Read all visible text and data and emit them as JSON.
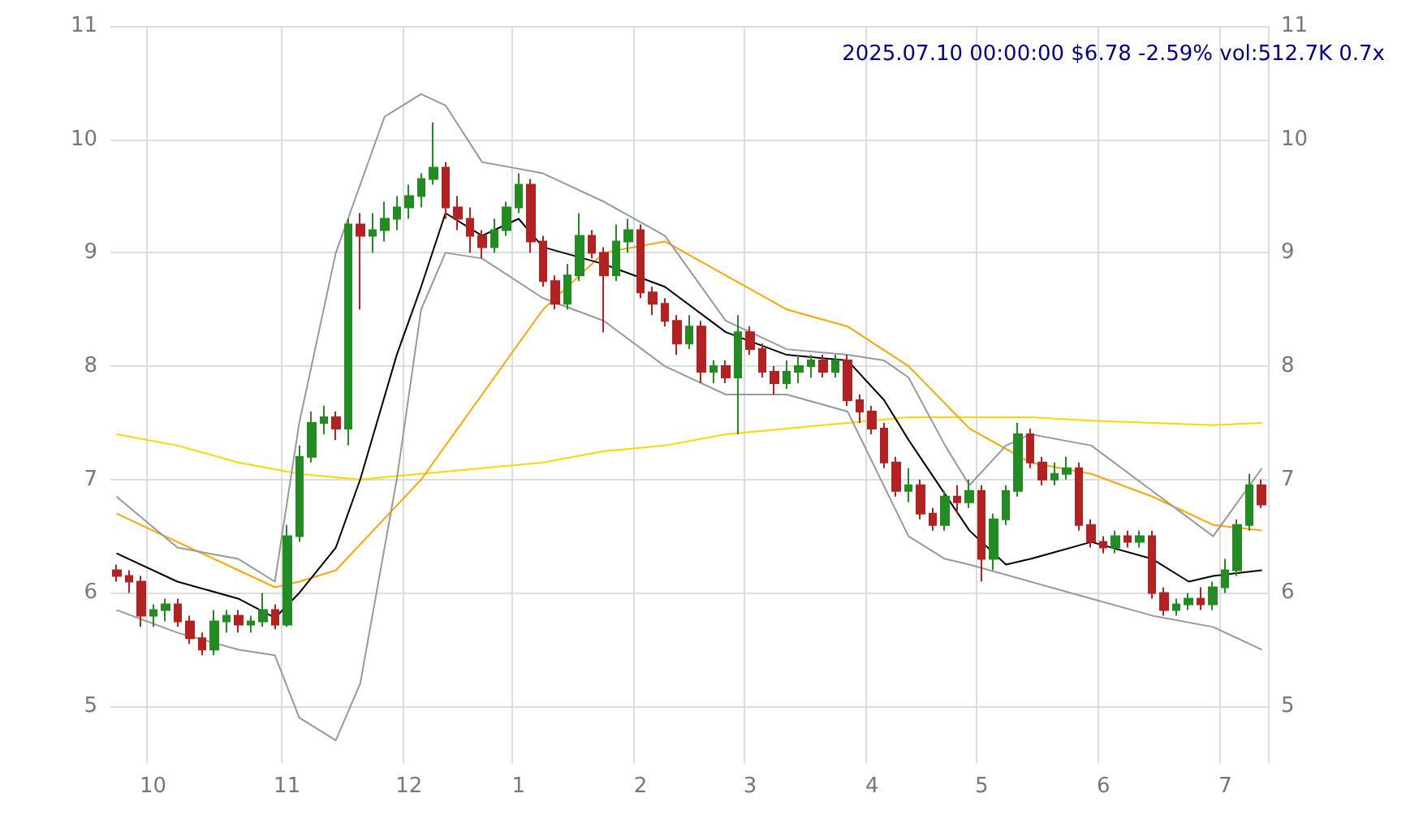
{
  "chart_data": {
    "type": "candlestick",
    "title": "2025.07.10 00:00:00 $6.78 -2.59% vol:512.7K 0.7x",
    "categories": [
      null,
      null,
      null,
      "10",
      null,
      null,
      null,
      null,
      null,
      null,
      null,
      null,
      null,
      null,
      "11",
      null,
      null,
      null,
      null,
      null,
      null,
      null,
      null,
      null,
      "12",
      null,
      null,
      null,
      null,
      null,
      null,
      null,
      null,
      "1",
      null,
      null,
      null,
      null,
      null,
      null,
      null,
      null,
      null,
      "2",
      null,
      null,
      null,
      null,
      null,
      null,
      null,
      null,
      "3",
      null,
      null,
      null,
      null,
      null,
      null,
      null,
      null,
      null,
      "4",
      null,
      null,
      null,
      null,
      null,
      null,
      null,
      null,
      "5",
      null,
      null,
      null,
      null,
      null,
      null,
      null,
      null,
      null,
      "6",
      null,
      null,
      null,
      null,
      null,
      null,
      null,
      null,
      null,
      "7",
      null,
      null,
      null
    ],
    "ylim": [
      4.5,
      11
    ],
    "yticks": [
      5,
      6,
      7,
      8,
      9,
      10,
      11
    ],
    "y2lim": [
      4.5,
      11
    ],
    "y2ticks": [
      5,
      6,
      7,
      8,
      9,
      10,
      11
    ],
    "grid": true,
    "series": [
      {
        "type": "candlestick",
        "ohlc": [
          [
            6.2,
            6.25,
            6.1,
            6.15
          ],
          [
            6.15,
            6.2,
            6.0,
            6.1
          ],
          [
            6.1,
            6.15,
            5.7,
            5.8
          ],
          [
            5.8,
            5.9,
            5.7,
            5.85
          ],
          [
            5.85,
            5.95,
            5.75,
            5.9
          ],
          [
            5.9,
            5.95,
            5.7,
            5.75
          ],
          [
            5.75,
            5.8,
            5.55,
            5.6
          ],
          [
            5.6,
            5.65,
            5.45,
            5.5
          ],
          [
            5.5,
            5.85,
            5.45,
            5.75
          ],
          [
            5.75,
            5.85,
            5.65,
            5.8
          ],
          [
            5.8,
            5.85,
            5.65,
            5.72
          ],
          [
            5.72,
            5.8,
            5.65,
            5.75
          ],
          [
            5.75,
            6.0,
            5.7,
            5.85
          ],
          [
            5.85,
            5.9,
            5.68,
            5.72
          ],
          [
            5.72,
            6.6,
            5.7,
            6.5
          ],
          [
            6.5,
            7.3,
            6.45,
            7.2
          ],
          [
            7.2,
            7.6,
            7.15,
            7.5
          ],
          [
            7.5,
            7.65,
            7.4,
            7.55
          ],
          [
            7.55,
            7.6,
            7.35,
            7.45
          ],
          [
            7.45,
            9.3,
            7.3,
            9.25
          ],
          [
            9.25,
            9.35,
            8.5,
            9.15
          ],
          [
            9.15,
            9.35,
            9.0,
            9.2
          ],
          [
            9.2,
            9.45,
            9.1,
            9.3
          ],
          [
            9.3,
            9.5,
            9.2,
            9.4
          ],
          [
            9.4,
            9.6,
            9.3,
            9.5
          ],
          [
            9.5,
            9.7,
            9.4,
            9.65
          ],
          [
            9.65,
            10.15,
            9.6,
            9.75
          ],
          [
            9.75,
            9.8,
            9.3,
            9.4
          ],
          [
            9.4,
            9.5,
            9.2,
            9.3
          ],
          [
            9.3,
            9.4,
            9.0,
            9.15
          ],
          [
            9.15,
            9.2,
            8.95,
            9.05
          ],
          [
            9.05,
            9.3,
            9.0,
            9.2
          ],
          [
            9.2,
            9.45,
            9.15,
            9.4
          ],
          [
            9.4,
            9.7,
            9.35,
            9.6
          ],
          [
            9.6,
            9.65,
            9.0,
            9.1
          ],
          [
            9.1,
            9.15,
            8.7,
            8.75
          ],
          [
            8.75,
            8.8,
            8.5,
            8.55
          ],
          [
            8.55,
            8.9,
            8.5,
            8.8
          ],
          [
            8.8,
            9.35,
            8.75,
            9.15
          ],
          [
            9.15,
            9.2,
            8.95,
            9.0
          ],
          [
            9.0,
            9.05,
            8.3,
            8.8
          ],
          [
            8.8,
            9.25,
            8.75,
            9.1
          ],
          [
            9.1,
            9.3,
            9.0,
            9.2
          ],
          [
            9.2,
            9.25,
            8.6,
            8.65
          ],
          [
            8.65,
            8.7,
            8.45,
            8.55
          ],
          [
            8.55,
            8.6,
            8.35,
            8.4
          ],
          [
            8.4,
            8.45,
            8.1,
            8.2
          ],
          [
            8.2,
            8.45,
            8.15,
            8.35
          ],
          [
            8.35,
            8.4,
            7.85,
            7.95
          ],
          [
            7.95,
            8.05,
            7.85,
            8.0
          ],
          [
            8.0,
            8.05,
            7.85,
            7.9
          ],
          [
            7.9,
            8.45,
            7.4,
            8.3
          ],
          [
            8.3,
            8.35,
            8.1,
            8.15
          ],
          [
            8.15,
            8.2,
            7.9,
            7.95
          ],
          [
            7.95,
            8.0,
            7.75,
            7.85
          ],
          [
            7.85,
            8.05,
            7.8,
            7.95
          ],
          [
            7.95,
            8.1,
            7.85,
            8.0
          ],
          [
            8.0,
            8.1,
            7.9,
            8.05
          ],
          [
            8.05,
            8.1,
            7.9,
            7.95
          ],
          [
            7.95,
            8.1,
            7.9,
            8.05
          ],
          [
            8.05,
            8.1,
            7.65,
            7.7
          ],
          [
            7.7,
            7.75,
            7.5,
            7.6
          ],
          [
            7.6,
            7.65,
            7.4,
            7.45
          ],
          [
            7.45,
            7.5,
            7.1,
            7.15
          ],
          [
            7.15,
            7.2,
            6.85,
            6.9
          ],
          [
            6.9,
            7.1,
            6.8,
            6.95
          ],
          [
            6.95,
            7.0,
            6.65,
            6.7
          ],
          [
            6.7,
            6.75,
            6.55,
            6.6
          ],
          [
            6.6,
            6.9,
            6.55,
            6.85
          ],
          [
            6.85,
            6.95,
            6.7,
            6.8
          ],
          [
            6.8,
            7.0,
            6.75,
            6.9
          ],
          [
            6.9,
            6.95,
            6.1,
            6.3
          ],
          [
            6.3,
            6.7,
            6.2,
            6.65
          ],
          [
            6.65,
            6.95,
            6.6,
            6.9
          ],
          [
            6.9,
            7.5,
            6.85,
            7.4
          ],
          [
            7.4,
            7.45,
            7.1,
            7.15
          ],
          [
            7.15,
            7.2,
            6.95,
            7.0
          ],
          [
            7.0,
            7.15,
            6.95,
            7.05
          ],
          [
            7.05,
            7.2,
            7.0,
            7.1
          ],
          [
            7.1,
            7.15,
            6.55,
            6.6
          ],
          [
            6.6,
            6.65,
            6.4,
            6.45
          ],
          [
            6.45,
            6.5,
            6.35,
            6.4
          ],
          [
            6.4,
            6.55,
            6.35,
            6.5
          ],
          [
            6.5,
            6.55,
            6.4,
            6.45
          ],
          [
            6.45,
            6.55,
            6.4,
            6.5
          ],
          [
            6.5,
            6.55,
            5.95,
            6.0
          ],
          [
            6.0,
            6.05,
            5.8,
            5.85
          ],
          [
            5.85,
            5.95,
            5.8,
            5.9
          ],
          [
            5.9,
            6.0,
            5.85,
            5.95
          ],
          [
            5.95,
            6.05,
            5.85,
            5.9
          ],
          [
            5.9,
            6.1,
            5.85,
            6.05
          ],
          [
            6.05,
            6.3,
            6.0,
            6.2
          ],
          [
            6.2,
            6.65,
            6.15,
            6.6
          ],
          [
            6.6,
            7.05,
            6.55,
            6.95
          ],
          [
            6.95,
            7.0,
            6.75,
            6.78
          ]
        ],
        "colors": [
          "#b22222",
          "#b22222",
          "#b22222",
          "#228b22",
          "#228b22",
          "#b22222",
          "#b22222",
          "#b22222",
          "#228b22",
          "#228b22",
          "#b22222",
          "#228b22",
          "#228b22",
          "#b22222",
          "#228b22",
          "#228b22",
          "#228b22",
          "#228b22",
          "#b22222",
          "#228b22",
          "#b22222",
          "#228b22",
          "#228b22",
          "#228b22",
          "#228b22",
          "#228b22",
          "#228b22",
          "#b22222",
          "#b22222",
          "#b22222",
          "#b22222",
          "#228b22",
          "#228b22",
          "#228b22",
          "#b22222",
          "#b22222",
          "#b22222",
          "#228b22",
          "#228b22",
          "#b22222",
          "#b22222",
          "#228b22",
          "#228b22",
          "#b22222",
          "#b22222",
          "#b22222",
          "#b22222",
          "#228b22",
          "#b22222",
          "#228b22",
          "#b22222",
          "#228b22",
          "#b22222",
          "#b22222",
          "#b22222",
          "#228b22",
          "#228b22",
          "#228b22",
          "#b22222",
          "#228b22",
          "#b22222",
          "#b22222",
          "#b22222",
          "#b22222",
          "#b22222",
          "#228b22",
          "#b22222",
          "#b22222",
          "#228b22",
          "#b22222",
          "#228b22",
          "#b22222",
          "#228b22",
          "#228b22",
          "#228b22",
          "#b22222",
          "#b22222",
          "#228b22",
          "#228b22",
          "#b22222",
          "#b22222",
          "#b22222",
          "#228b22",
          "#b22222",
          "#228b22",
          "#b22222",
          "#b22222",
          "#228b22",
          "#228b22",
          "#b22222",
          "#228b22",
          "#228b22",
          "#228b22",
          "#228b22",
          "#b22222"
        ]
      },
      {
        "type": "line",
        "color": "#ffd700",
        "values": [
          7.4,
          null,
          null,
          null,
          null,
          7.3,
          null,
          null,
          null,
          null,
          7.15,
          null,
          null,
          null,
          null,
          7.05,
          null,
          null,
          null,
          null,
          7.0,
          null,
          null,
          null,
          null,
          7.05,
          null,
          null,
          null,
          null,
          7.1,
          null,
          null,
          null,
          null,
          7.15,
          null,
          null,
          null,
          null,
          7.25,
          null,
          null,
          null,
          null,
          7.3,
          null,
          null,
          null,
          null,
          7.4,
          null,
          null,
          null,
          null,
          7.45,
          null,
          null,
          null,
          null,
          7.5,
          null,
          null,
          null,
          null,
          7.55,
          null,
          null,
          null,
          null,
          7.55,
          null,
          null,
          null,
          null,
          7.55,
          null,
          null,
          null,
          null,
          7.52,
          null,
          null,
          null,
          null,
          7.5,
          null,
          null,
          null,
          null,
          7.48,
          null,
          null,
          null,
          7.5
        ]
      },
      {
        "type": "line",
        "color": "#ffa500",
        "values": [
          6.7,
          null,
          null,
          null,
          null,
          6.45,
          null,
          null,
          null,
          null,
          6.2,
          null,
          null,
          6.05,
          null,
          6.1,
          null,
          null,
          6.2,
          null,
          null,
          null,
          null,
          null,
          null,
          7.0,
          null,
          null,
          null,
          null,
          7.75,
          null,
          null,
          null,
          null,
          8.5,
          null,
          null,
          null,
          null,
          9.0,
          null,
          null,
          null,
          null,
          9.1,
          null,
          null,
          null,
          null,
          8.8,
          null,
          null,
          null,
          null,
          8.5,
          null,
          null,
          null,
          null,
          8.35,
          null,
          null,
          null,
          null,
          8.0,
          null,
          null,
          null,
          null,
          7.45,
          null,
          null,
          null,
          null,
          7.15,
          null,
          null,
          null,
          null,
          7.05,
          null,
          null,
          null,
          null,
          6.85,
          null,
          null,
          null,
          null,
          6.6,
          null,
          null,
          null,
          6.55
        ]
      },
      {
        "type": "line",
        "color": "#000000",
        "values": [
          6.35,
          null,
          null,
          null,
          null,
          6.1,
          null,
          null,
          null,
          null,
          5.95,
          null,
          null,
          5.78,
          null,
          6.0,
          null,
          null,
          6.4,
          null,
          7.0,
          null,
          null,
          8.1,
          null,
          8.7,
          null,
          9.35,
          null,
          null,
          9.15,
          null,
          null,
          9.3,
          null,
          9.05,
          null,
          null,
          null,
          null,
          8.9,
          null,
          null,
          null,
          null,
          8.7,
          null,
          null,
          null,
          null,
          8.3,
          null,
          null,
          null,
          null,
          8.1,
          null,
          null,
          null,
          null,
          8.05,
          null,
          null,
          7.7,
          null,
          7.35,
          null,
          null,
          null,
          null,
          6.55,
          null,
          null,
          6.25,
          null,
          6.3,
          null,
          null,
          null,
          null,
          6.45,
          null,
          null,
          null,
          null,
          6.3,
          null,
          null,
          6.1,
          null,
          6.15,
          null,
          null,
          null,
          6.2
        ]
      },
      {
        "type": "line",
        "color": "#999999",
        "values": [
          6.85,
          null,
          null,
          null,
          null,
          6.4,
          null,
          null,
          null,
          null,
          6.3,
          null,
          null,
          6.1,
          null,
          7.5,
          null,
          null,
          9.0,
          null,
          null,
          null,
          10.2,
          null,
          null,
          10.4,
          null,
          10.3,
          null,
          null,
          9.8,
          null,
          null,
          null,
          null,
          9.7,
          null,
          null,
          null,
          null,
          9.45,
          null,
          null,
          null,
          null,
          9.15,
          null,
          null,
          null,
          null,
          8.4,
          null,
          null,
          null,
          null,
          8.15,
          null,
          null,
          null,
          null,
          8.1,
          null,
          null,
          8.05,
          null,
          7.9,
          null,
          null,
          7.3,
          null,
          6.95,
          null,
          null,
          7.3,
          null,
          7.4,
          null,
          null,
          null,
          null,
          7.3,
          null,
          null,
          null,
          null,
          6.9,
          null,
          null,
          null,
          null,
          6.5,
          null,
          null,
          null,
          7.1
        ]
      },
      {
        "type": "line",
        "color": "#999999",
        "values": [
          5.85,
          null,
          null,
          null,
          null,
          5.65,
          null,
          null,
          null,
          null,
          5.5,
          null,
          null,
          5.45,
          null,
          4.9,
          null,
          null,
          4.7,
          null,
          5.2,
          null,
          null,
          7.0,
          null,
          8.5,
          null,
          9.0,
          null,
          null,
          8.95,
          null,
          null,
          null,
          null,
          8.6,
          null,
          null,
          null,
          null,
          8.4,
          null,
          null,
          null,
          null,
          8.0,
          null,
          null,
          null,
          null,
          7.75,
          null,
          null,
          null,
          null,
          7.75,
          null,
          null,
          null,
          null,
          7.6,
          null,
          null,
          null,
          null,
          6.5,
          null,
          null,
          6.3,
          null,
          6.25,
          null,
          null,
          null,
          null,
          6.1,
          null,
          null,
          null,
          null,
          5.95,
          null,
          null,
          null,
          null,
          5.8,
          null,
          null,
          null,
          null,
          5.7,
          null,
          null,
          null,
          5.5
        ]
      }
    ]
  }
}
